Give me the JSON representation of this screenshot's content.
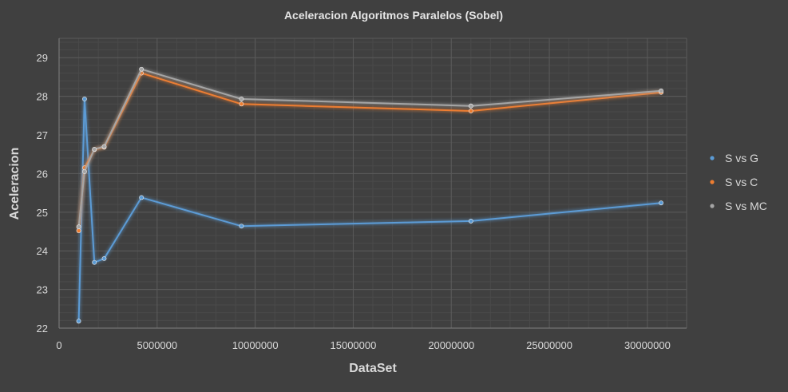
{
  "chart_data": {
    "type": "line",
    "title": "Aceleracion Algoritmos Paralelos (Sobel)",
    "xlabel": "DataSet",
    "ylabel": "Aceleracion",
    "xlim": [
      0,
      32000000
    ],
    "ylim": [
      22,
      29.5
    ],
    "xticks": [
      0,
      5000000,
      10000000,
      15000000,
      20000000,
      25000000,
      30000000
    ],
    "xtick_labels": [
      "0",
      "5000000",
      "10000000",
      "15000000",
      "20000000",
      "25000000",
      "30000000"
    ],
    "yticks": [
      22,
      23,
      24,
      25,
      26,
      27,
      28,
      29
    ],
    "ytick_labels": [
      "22",
      "23",
      "24",
      "25",
      "26",
      "27",
      "28",
      "29"
    ],
    "grid": true,
    "legend_position": "right",
    "x": [
      1000000,
      1300000,
      1800000,
      2300000,
      4200000,
      9300000,
      21000000,
      30700000
    ],
    "series": [
      {
        "name": "S vs G",
        "color": "#5b9bd5",
        "values": [
          22.18,
          27.93,
          23.7,
          23.8,
          25.38,
          24.64,
          24.77,
          25.24
        ]
      },
      {
        "name": "S vs C",
        "color": "#ed7d31",
        "values": [
          24.52,
          26.15,
          26.62,
          26.68,
          28.6,
          27.8,
          27.62,
          28.1
        ]
      },
      {
        "name": "S vs MC",
        "color": "#a5a5a5",
        "values": [
          24.62,
          26.05,
          26.63,
          26.7,
          28.7,
          27.93,
          27.75,
          28.14
        ]
      }
    ]
  }
}
